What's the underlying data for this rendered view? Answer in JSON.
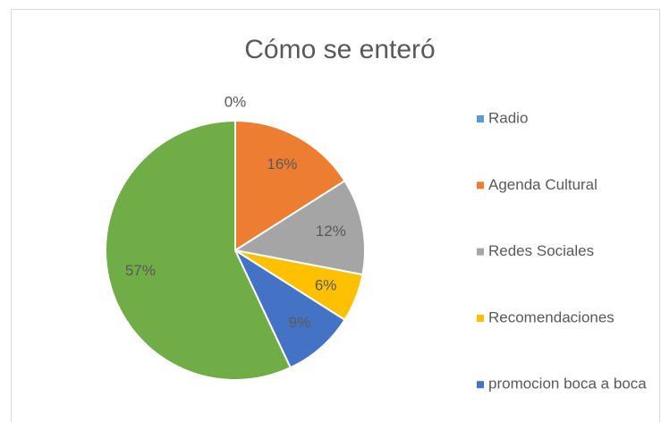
{
  "chart_data": {
    "type": "pie",
    "title": "Cómo se enteró",
    "categories": [
      "Radio",
      "Agenda Cultural",
      "Redes Sociales",
      "Recomendaciones",
      "promocion boca a boca",
      null
    ],
    "values": [
      0,
      16,
      12,
      6,
      9,
      57
    ],
    "value_labels": [
      "0%",
      "16%",
      "12%",
      "6%",
      "9%",
      "57%"
    ],
    "colors": [
      "#5b9bd5",
      "#ed7d31",
      "#a5a5a5",
      "#ffc000",
      "#4472c4",
      "#70ad47"
    ],
    "legend": "right"
  }
}
